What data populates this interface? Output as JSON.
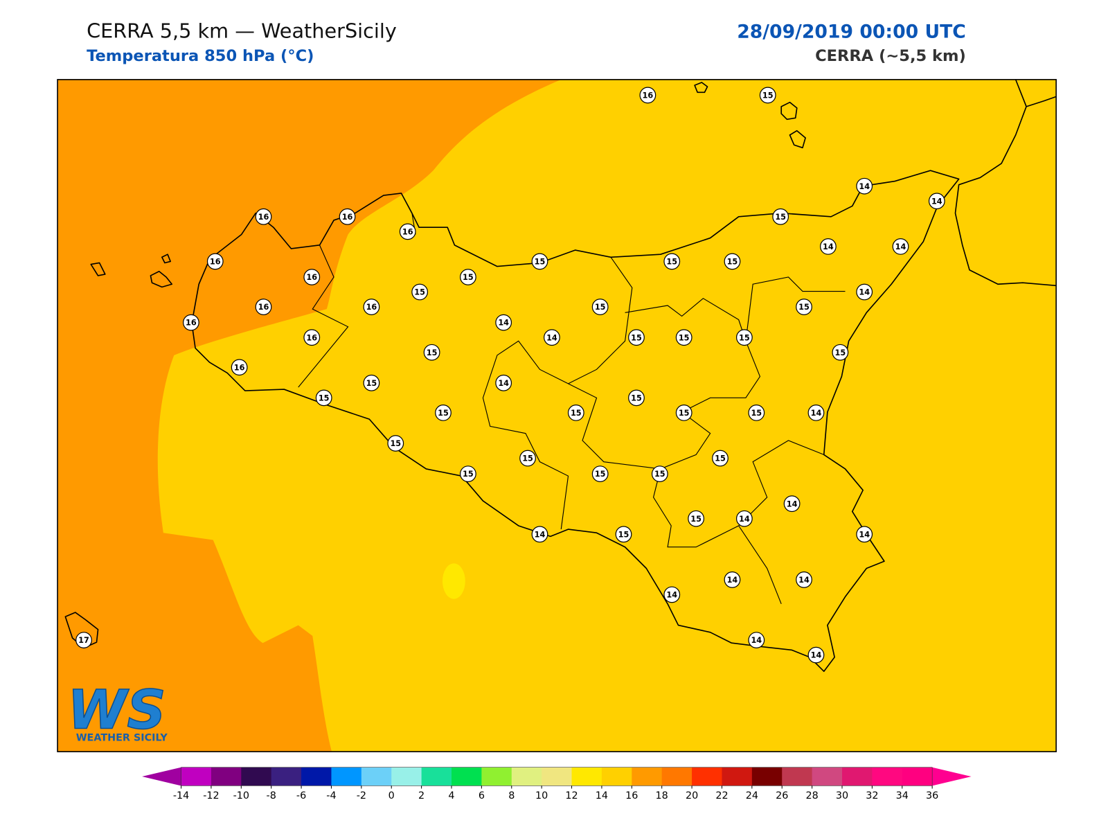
{
  "header": {
    "title": "CERRA 5,5 km — WeatherSicily",
    "subtitle": "Temperatura 850 hPa (°C)",
    "datetime": "28/09/2019 00:00 UTC",
    "model": "CERRA (~5,5 km)"
  },
  "logo": {
    "letters": "WS",
    "caption": "WEATHER SICILY"
  },
  "stations": [
    16,
    15,
    14,
    14,
    16,
    16,
    16,
    15,
    16,
    15,
    15,
    15,
    14,
    14,
    16,
    15,
    15,
    14,
    16,
    16,
    15,
    15,
    16,
    14,
    16,
    14,
    15,
    15,
    15,
    15,
    15,
    16,
    15,
    14,
    15,
    15,
    15,
    15,
    15,
    15,
    14,
    15,
    15,
    15,
    15,
    15,
    15,
    14,
    15,
    14,
    14,
    15,
    14,
    14,
    14,
    14,
    14,
    14,
    17
  ],
  "colorbar": {
    "ticks": [
      -14,
      -12,
      -10,
      -8,
      -6,
      -4,
      -2,
      0,
      2,
      4,
      6,
      8,
      10,
      12,
      14,
      16,
      18,
      20,
      22,
      24,
      26,
      28,
      30,
      32,
      34,
      36
    ],
    "colors": [
      "#c000c0",
      "#800080",
      "#300a50",
      "#3a2080",
      "#0018a8",
      "#0096ff",
      "#6cd0f8",
      "#98f0e8",
      "#18e09a",
      "#00e050",
      "#90f030",
      "#e0f080",
      "#f0e680",
      "#ffe800",
      "#ffd000",
      "#ff9a00",
      "#ff7800",
      "#ff3000",
      "#d01810",
      "#780000",
      "#c03850",
      "#d04880",
      "#e01870",
      "#ff0880",
      "#ff0080"
    ],
    "extend_colors": [
      "#a000a0",
      "#ff0090"
    ]
  }
}
